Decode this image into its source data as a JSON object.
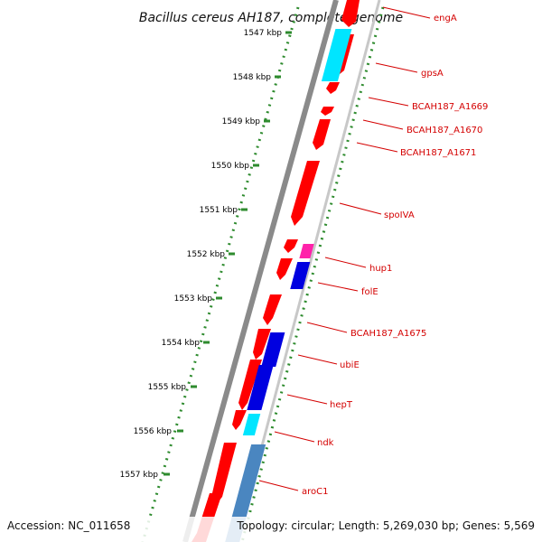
{
  "title": "Bacillus cereus AH187, complete genome",
  "footer": {
    "accession": "Accession: NC_011658",
    "topology": "Topology: circular; Length: 5,269,030 bp; Genes: 5,569"
  },
  "colors": {
    "label": "#d40000",
    "tick": "#2e8b2e",
    "gene_forward": "#ff0000",
    "gene_reverse": "#ff0000",
    "highlight_cyan": "#00e5ff",
    "highlight_blue": "#0000e0",
    "highlight_magenta": "#ff22aa",
    "highlight_steel": "#4a86c0",
    "backbone": "#8a8a8a"
  },
  "scale_labels": [
    "1547 kbp",
    "1548 kbp",
    "1549 kbp",
    "1550 kbp",
    "1551 kbp",
    "1552 kbp",
    "1553 kbp",
    "1554 kbp",
    "1555 kbp",
    "1556 kbp",
    "1557 kbp"
  ],
  "genes": [
    {
      "name": "engA",
      "color": "gene_forward",
      "strand": "forward"
    },
    {
      "name": "gpsA",
      "color": "highlight_cyan",
      "strand": "reverse"
    },
    {
      "name": "BCAH187_A1669",
      "color": "gene_forward",
      "strand": "forward"
    },
    {
      "name": "BCAH187_A1670",
      "color": "gene_forward",
      "strand": "forward"
    },
    {
      "name": "BCAH187_A1671",
      "color": "gene_forward",
      "strand": "forward"
    },
    {
      "name": "spoIVA",
      "color": "gene_forward",
      "strand": "forward"
    },
    {
      "name": "hup1",
      "color": "highlight_magenta",
      "strand": "reverse"
    },
    {
      "name": "folE",
      "color": "highlight_blue",
      "strand": "reverse"
    },
    {
      "name": "BCAH187_A1675",
      "color": "gene_forward",
      "strand": "forward"
    },
    {
      "name": "ubiE",
      "color": "highlight_blue",
      "strand": "reverse"
    },
    {
      "name": "hepT",
      "color": "highlight_blue",
      "strand": "reverse"
    },
    {
      "name": "ndk",
      "color": "highlight_cyan",
      "strand": "reverse"
    },
    {
      "name": "aroC1",
      "color": "highlight_steel",
      "strand": "reverse"
    }
  ]
}
